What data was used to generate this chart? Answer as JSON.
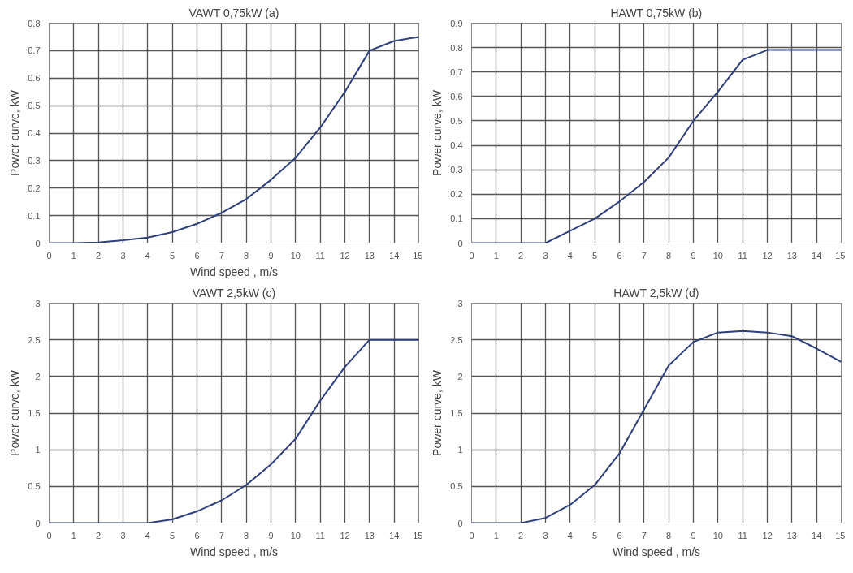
{
  "chart_data": [
    {
      "type": "line",
      "title": "VAWT 0,75kW (a)",
      "xlabel": "Wind speed , m/s",
      "ylabel": "Power curve, kW",
      "x": [
        0,
        1,
        2,
        3,
        4,
        5,
        6,
        7,
        8,
        9,
        10,
        11,
        12,
        13,
        14,
        15
      ],
      "series": [
        {
          "color": "#2e3f7a",
          "values": [
            0,
            0,
            0.002,
            0.01,
            0.02,
            0.04,
            0.07,
            0.11,
            0.16,
            0.23,
            0.31,
            0.42,
            0.55,
            0.7,
            0.735,
            0.75
          ]
        }
      ],
      "xlim": [
        0,
        15
      ],
      "xticks": [
        0,
        1,
        2,
        3,
        4,
        5,
        6,
        7,
        8,
        9,
        10,
        11,
        12,
        13,
        14,
        15
      ],
      "ylim": [
        0,
        0.8
      ],
      "yticks": [
        0,
        0.1,
        0.2,
        0.3,
        0.4,
        0.5,
        0.6,
        0.7,
        0.8
      ],
      "grid": true,
      "marker": "none",
      "line_style": "solid"
    },
    {
      "type": "line",
      "title": "HAWT 0,75kW (b)",
      "ylabel": "Power curve, kW",
      "x": [
        0,
        1,
        2,
        3,
        4,
        5,
        6,
        7,
        8,
        9,
        10,
        11,
        12,
        13,
        14,
        15
      ],
      "series": [
        {
          "color": "#2e3f7a",
          "values": [
            0,
            0,
            0,
            0,
            0.05,
            0.1,
            0.17,
            0.25,
            0.35,
            0.5,
            0.62,
            0.75,
            0.79,
            0.79,
            0.79,
            0.79
          ]
        }
      ],
      "xlim": [
        0,
        15
      ],
      "xticks": [
        0,
        1,
        2,
        3,
        4,
        5,
        6,
        7,
        8,
        9,
        10,
        11,
        12,
        13,
        14,
        15
      ],
      "ylim": [
        0,
        0.9
      ],
      "yticks": [
        0,
        0.1,
        0.2,
        0.3,
        0.4,
        0.5,
        0.6,
        0.7,
        0.8,
        0.9
      ],
      "grid": true,
      "marker": "none",
      "line_style": "solid"
    },
    {
      "type": "line",
      "title": "VAWT 2,5kW (c)",
      "xlabel": "Wind speed , m/s",
      "ylabel": "Power curve, kW",
      "x": [
        0,
        1,
        2,
        3,
        4,
        5,
        6,
        7,
        8,
        9,
        10,
        11,
        12,
        13,
        14,
        15
      ],
      "series": [
        {
          "color": "#2e3f7a",
          "values": [
            0,
            0,
            0,
            0,
            0,
            0.05,
            0.16,
            0.31,
            0.52,
            0.8,
            1.15,
            1.67,
            2.13,
            2.5,
            2.5,
            2.5
          ]
        }
      ],
      "xlim": [
        0,
        15
      ],
      "xticks": [
        0,
        1,
        2,
        3,
        4,
        5,
        6,
        7,
        8,
        9,
        10,
        11,
        12,
        13,
        14,
        15
      ],
      "ylim": [
        0,
        3
      ],
      "yticks": [
        0,
        0.5,
        1,
        1.5,
        2,
        2.5,
        3
      ],
      "grid": true,
      "marker": "none",
      "line_style": "solid"
    },
    {
      "type": "line",
      "title": "HAWT 2,5kW (d)",
      "xlabel": "Wind speed , m/s",
      "ylabel": "Power curve, kW",
      "x": [
        0,
        1,
        2,
        3,
        4,
        5,
        6,
        7,
        8,
        9,
        10,
        11,
        12,
        13,
        14,
        15
      ],
      "series": [
        {
          "color": "#2e3f7a",
          "values": [
            0,
            0,
            0,
            0.07,
            0.25,
            0.52,
            0.95,
            1.55,
            2.15,
            2.47,
            2.6,
            2.62,
            2.6,
            2.55,
            2.38,
            2.2
          ]
        }
      ],
      "xlim": [
        0,
        15
      ],
      "xticks": [
        0,
        1,
        2,
        3,
        4,
        5,
        6,
        7,
        8,
        9,
        10,
        11,
        12,
        13,
        14,
        15
      ],
      "ylim": [
        0,
        3
      ],
      "yticks": [
        0,
        0.5,
        1,
        1.5,
        2,
        2.5,
        3
      ],
      "grid": true,
      "marker": "none",
      "line_style": "solid"
    }
  ]
}
